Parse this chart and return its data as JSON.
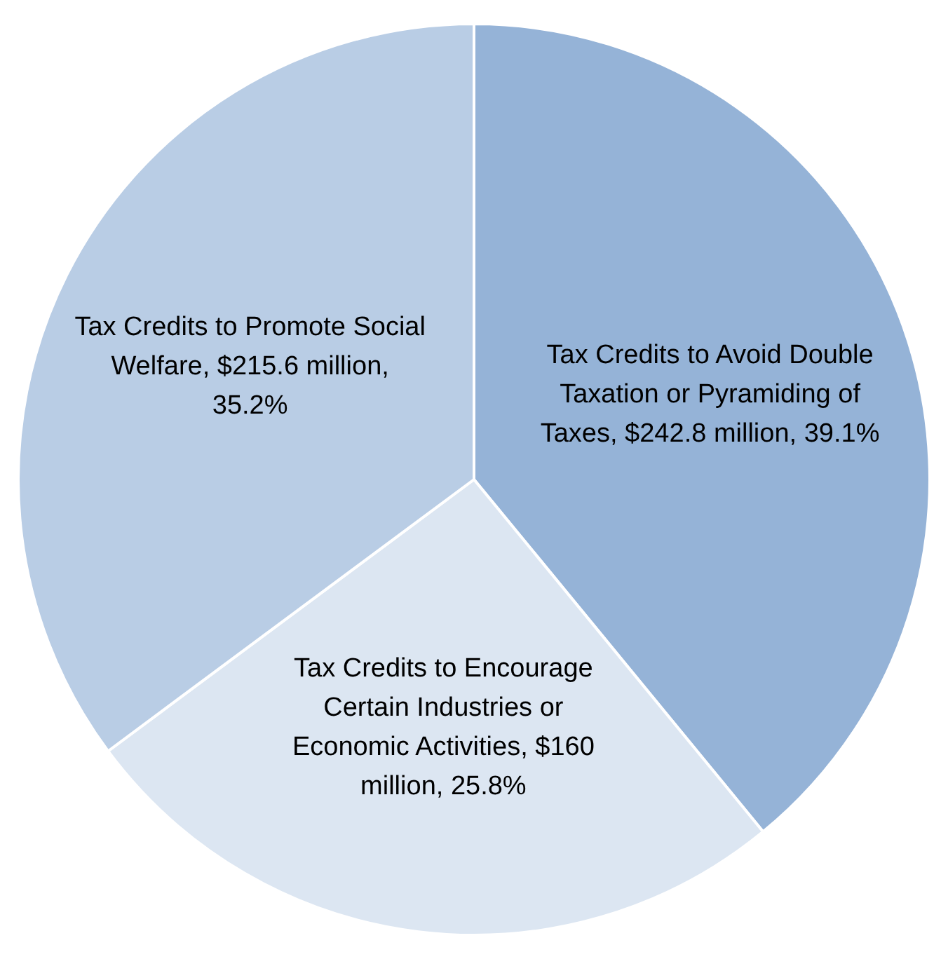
{
  "chart_data": {
    "type": "pie",
    "categories": [
      "Tax Credits to Avoid Double Taxation or Pyramiding of Taxes, $242.8 million, 39.1%",
      "Tax Credits to Encourage Certain Industries or Economic Activities, $160 million, 25.8%",
      "Tax Credits to Promote Social Welfare, $215.6 million, 35.2%"
    ],
    "values": [
      39.1,
      25.8,
      35.2
    ],
    "colors": [
      "#95b3d7",
      "#dce6f2",
      "#b9cde5"
    ],
    "legend": false
  }
}
